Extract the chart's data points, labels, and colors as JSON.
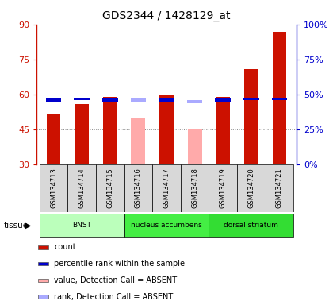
{
  "title": "GDS2344 / 1428129_at",
  "samples": [
    "GSM134713",
    "GSM134714",
    "GSM134715",
    "GSM134716",
    "GSM134717",
    "GSM134718",
    "GSM134719",
    "GSM134720",
    "GSM134721"
  ],
  "count_values": [
    52,
    56,
    59,
    0,
    60,
    0,
    59,
    71,
    87
  ],
  "count_absent": [
    0,
    0,
    0,
    50,
    0,
    45,
    0,
    0,
    0
  ],
  "percentile_values": [
    46,
    47,
    46,
    0,
    46,
    0,
    46,
    47,
    47
  ],
  "percentile_absent": [
    0,
    0,
    0,
    46,
    0,
    45,
    0,
    0,
    0
  ],
  "tissues": [
    {
      "label": "BNST",
      "start": 0,
      "end": 3
    },
    {
      "label": "nucleus accumbens",
      "start": 3,
      "end": 6
    },
    {
      "label": "dorsal striatum",
      "start": 6,
      "end": 9
    }
  ],
  "tissue_colors": [
    "#bbffbb",
    "#44ee44",
    "#33dd33"
  ],
  "tissue_label": "tissue",
  "ylim_left": [
    30,
    90
  ],
  "ylim_right": [
    0,
    100
  ],
  "yticks_left": [
    30,
    45,
    60,
    75,
    90
  ],
  "yticks_right": [
    0,
    25,
    50,
    75,
    100
  ],
  "ytick_labels_right": [
    "0%",
    "25%",
    "50%",
    "75%",
    "100%"
  ],
  "bar_width": 0.5,
  "count_color": "#cc1100",
  "percentile_color": "#0000cc",
  "absent_count_color": "#ffaaaa",
  "absent_percentile_color": "#aaaaff",
  "grid_color": "#888888",
  "bg_color": "#ffffff",
  "left_axis_color": "#cc1100",
  "right_axis_color": "#0000cc"
}
